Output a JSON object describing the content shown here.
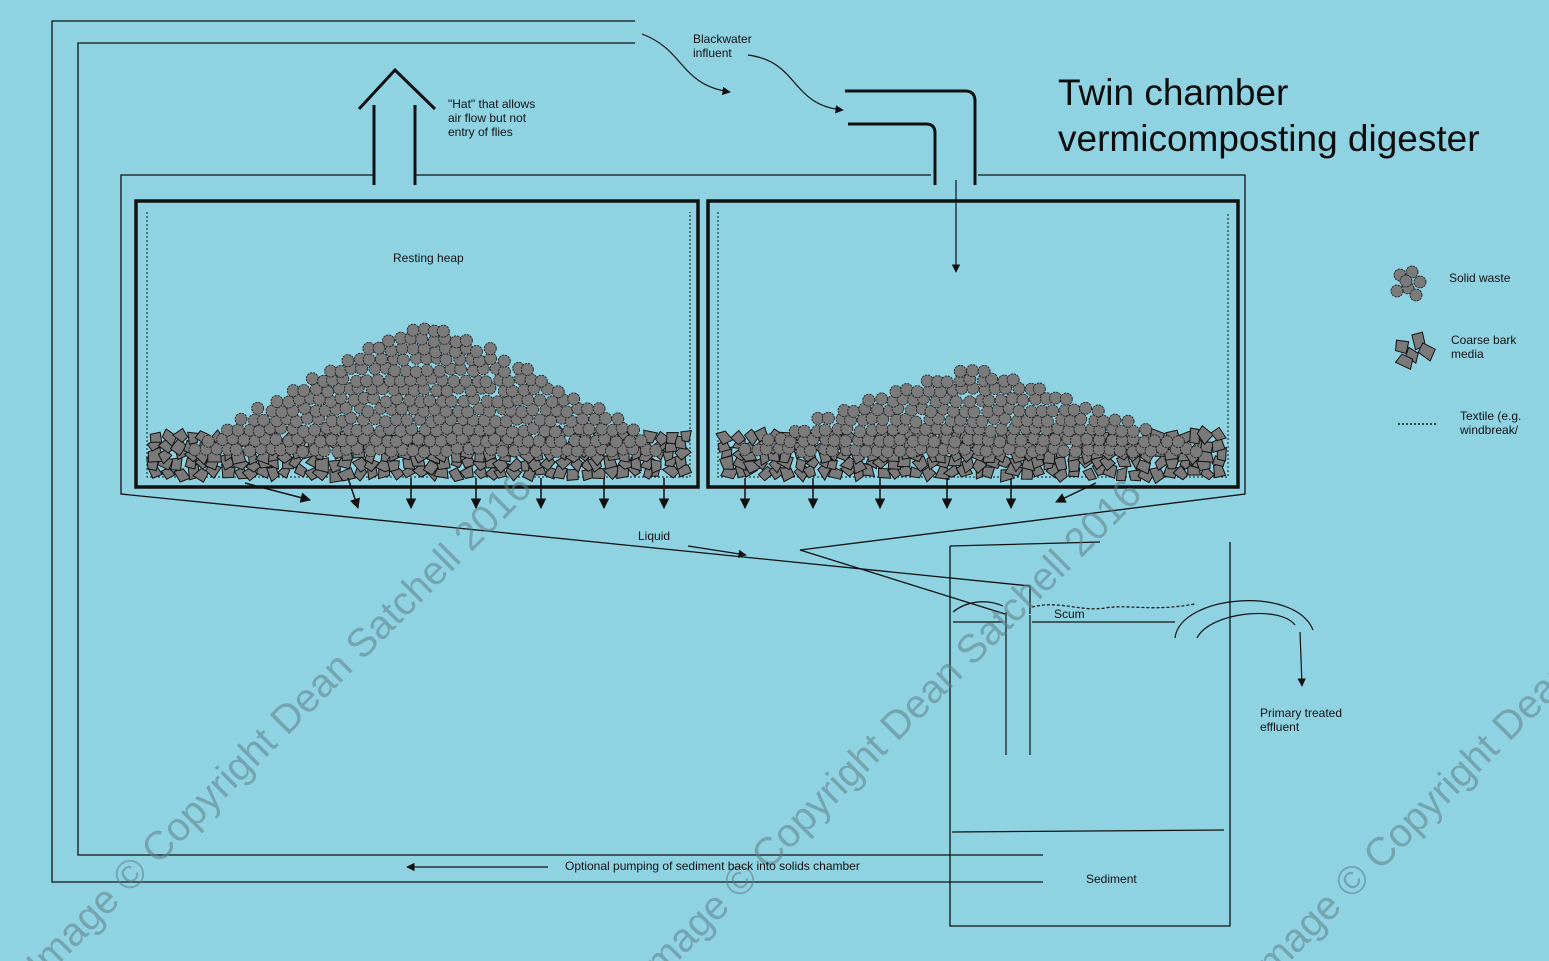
{
  "title": {
    "line1": "Twin chamber",
    "line2": "vermicomposting digester"
  },
  "labels": {
    "blackwater_influent": "Blackwater\ninfluent",
    "hat": "\"Hat\" that allows\nair flow but not\nentry of flies",
    "resting_heap": "Resting heap",
    "liquid": "Liquid",
    "scum": "Scum",
    "primary_effluent": "Primary treated\neffluent",
    "sediment": "Sediment",
    "pumping": "Optional pumping of sediment back into solids chamber"
  },
  "legend": {
    "solid_waste": "Solid waste",
    "coarse_bark": "Coarse bark\nmedia",
    "textile": "Textile (e.g.\nwindbreak/"
  },
  "watermark": "Image © Copyright Dean Satchell 2016",
  "colors": {
    "background": "#8fd3e3",
    "line": "#111111",
    "solid_waste_fill": "#7b7b7b",
    "bark_fill": "#7a7a7a"
  }
}
